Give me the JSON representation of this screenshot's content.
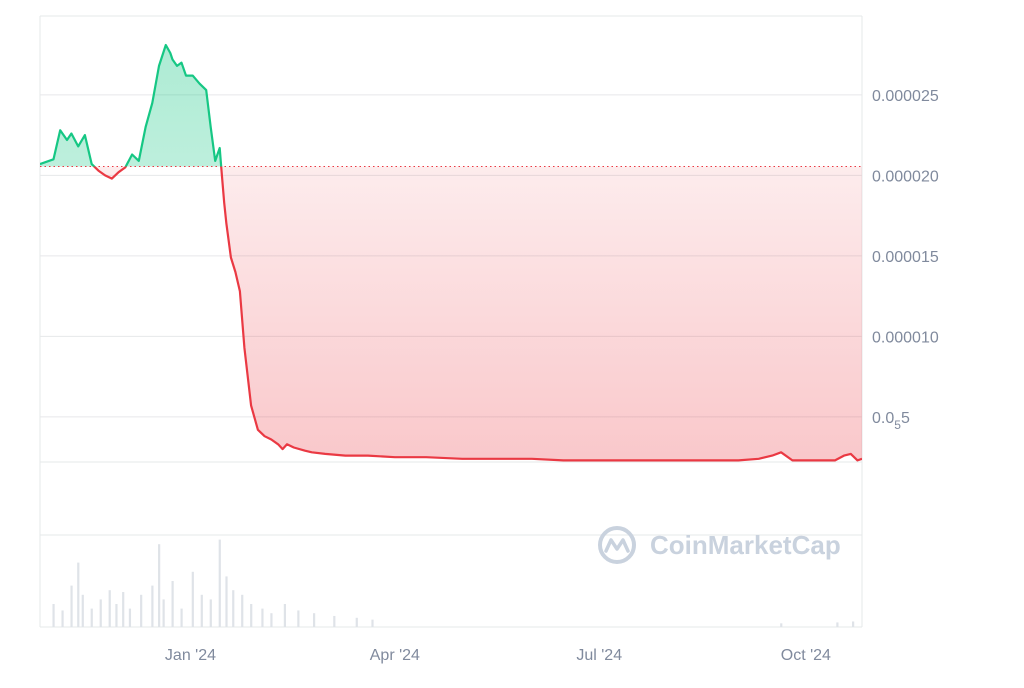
{
  "watermark": {
    "text": "CoinMarketCap",
    "logo_icon": "coinmarketcap-logo-icon"
  },
  "colors": {
    "up": "#16c784",
    "down": "#ea3943",
    "grid": "#e6e8ea",
    "axis_text": "#808a9d",
    "baseline": "#ea3943",
    "volume": "#dfe3e8"
  },
  "chart_data": {
    "type": "area",
    "title": "",
    "xlabel": "",
    "ylabel": "",
    "x_ticks": [
      "Jan '24",
      "Apr '24",
      "Jul '24",
      "Oct '24"
    ],
    "x_tick_dates": [
      "2024-01-01",
      "2024-04-01",
      "2024-07-01",
      "2024-10-01"
    ],
    "x_range": [
      "2023-10-26",
      "2024-10-26"
    ],
    "y_ticks": [
      {
        "value": 2.5e-05,
        "label": "0.000025"
      },
      {
        "value": 2e-05,
        "label": "0.000020"
      },
      {
        "value": 1.5e-05,
        "label": "0.000015"
      },
      {
        "value": 1e-05,
        "label": "0.000010"
      },
      {
        "value": 5e-06,
        "label_main": "0.0",
        "label_sub": "5",
        "label_tail": "5"
      }
    ],
    "ylim": [
      2.2e-06,
      2.99e-05
    ],
    "baseline": 2.055e-05,
    "grid": true,
    "series": [
      {
        "x": [
          "2023-10-26",
          "2023-11-01",
          "2023-11-04",
          "2023-11-07",
          "2023-11-09",
          "2023-11-12",
          "2023-11-15",
          "2023-11-18",
          "2023-11-21",
          "2023-11-24",
          "2023-11-27",
          "2023-11-30",
          "2023-12-03",
          "2023-12-06",
          "2023-12-09",
          "2023-12-12",
          "2023-12-15",
          "2023-12-18",
          "2023-12-21",
          "2023-12-23",
          "2023-12-24",
          "2023-12-26",
          "2023-12-28",
          "2023-12-30",
          "2024-01-02",
          "2024-01-05",
          "2024-01-08",
          "2024-01-10",
          "2024-01-12",
          "2024-01-14",
          "2024-01-15",
          "2024-01-16",
          "2024-01-17",
          "2024-01-19",
          "2024-01-21",
          "2024-01-23",
          "2024-01-25",
          "2024-01-28",
          "2024-01-31",
          "2024-02-03",
          "2024-02-06",
          "2024-02-09",
          "2024-02-11",
          "2024-02-13",
          "2024-02-16",
          "2024-02-21",
          "2024-02-24",
          "2024-03-01",
          "2024-03-10",
          "2024-03-20",
          "2024-04-01",
          "2024-04-15",
          "2024-05-01",
          "2024-05-15",
          "2024-06-01",
          "2024-06-15",
          "2024-07-01",
          "2024-07-15",
          "2024-08-01",
          "2024-08-15",
          "2024-09-01",
          "2024-09-10",
          "2024-09-16",
          "2024-09-20",
          "2024-09-25",
          "2024-10-01",
          "2024-10-10",
          "2024-10-14",
          "2024-10-18",
          "2024-10-21",
          "2024-10-24",
          "2024-10-26"
        ],
        "y": [
          2.07e-05,
          2.1e-05,
          2.28e-05,
          2.22e-05,
          2.26e-05,
          2.18e-05,
          2.25e-05,
          2.07e-05,
          2.03e-05,
          2e-05,
          1.98e-05,
          2.02e-05,
          2.05e-05,
          2.13e-05,
          2.09e-05,
          2.3e-05,
          2.45e-05,
          2.68e-05,
          2.81e-05,
          2.76e-05,
          2.72e-05,
          2.68e-05,
          2.7e-05,
          2.62e-05,
          2.62e-05,
          2.57e-05,
          2.53e-05,
          2.3e-05,
          2.09e-05,
          2.17e-05,
          2e-05,
          1.83e-05,
          1.7e-05,
          1.49e-05,
          1.4e-05,
          1.28e-05,
          9.3e-06,
          5.7e-06,
          4.2e-06,
          3.8e-06,
          3.6e-06,
          3.3e-06,
          3e-06,
          3.3e-06,
          3.1e-06,
          2.9e-06,
          2.8e-06,
          2.7e-06,
          2.6e-06,
          2.6e-06,
          2.5e-06,
          2.5e-06,
          2.4e-06,
          2.4e-06,
          2.4e-06,
          2.3e-06,
          2.3e-06,
          2.3e-06,
          2.3e-06,
          2.3e-06,
          2.3e-06,
          2.4e-06,
          2.6e-06,
          2.8e-06,
          2.3e-06,
          2.3e-06,
          2.3e-06,
          2.3e-06,
          2.6e-06,
          2.7e-06,
          2.3e-06,
          2.4e-06
        ]
      }
    ],
    "volume": {
      "x": [
        "2023-11-01",
        "2023-11-05",
        "2023-11-09",
        "2023-11-12",
        "2023-11-14",
        "2023-11-18",
        "2023-11-22",
        "2023-11-26",
        "2023-11-29",
        "2023-12-02",
        "2023-12-05",
        "2023-12-10",
        "2023-12-15",
        "2023-12-18",
        "2023-12-20",
        "2023-12-24",
        "2023-12-28",
        "2024-01-02",
        "2024-01-06",
        "2024-01-10",
        "2024-01-14",
        "2024-01-17",
        "2024-01-20",
        "2024-01-24",
        "2024-01-28",
        "2024-02-02",
        "2024-02-06",
        "2024-02-12",
        "2024-02-18",
        "2024-02-25",
        "2024-03-05",
        "2024-03-15",
        "2024-03-22",
        "2024-09-20",
        "2024-10-15",
        "2024-10-22"
      ],
      "values": [
        0.25,
        0.18,
        0.45,
        0.7,
        0.35,
        0.2,
        0.3,
        0.4,
        0.25,
        0.38,
        0.2,
        0.35,
        0.45,
        0.9,
        0.3,
        0.5,
        0.2,
        0.6,
        0.35,
        0.3,
        0.95,
        0.55,
        0.4,
        0.35,
        0.25,
        0.2,
        0.15,
        0.25,
        0.18,
        0.15,
        0.12,
        0.1,
        0.08,
        0.04,
        0.05,
        0.06
      ]
    }
  }
}
